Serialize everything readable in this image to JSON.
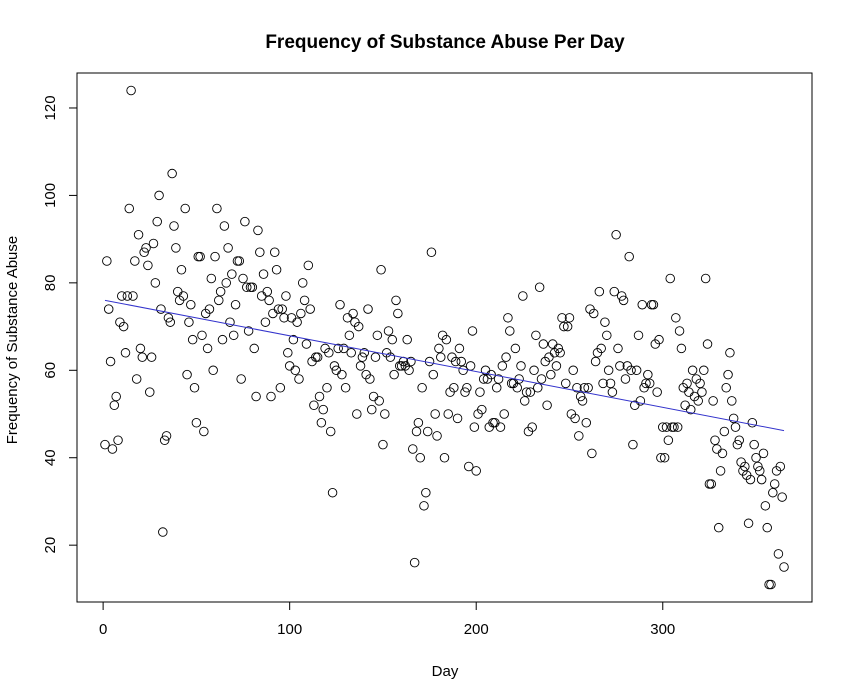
{
  "chart_data": {
    "type": "scatter",
    "title": "Frequency of Substance Abuse Per Day",
    "xlabel": "Day",
    "ylabel": "Frequency of Substance Abuse",
    "xlim": [
      -14,
      380
    ],
    "ylim": [
      7,
      128
    ],
    "xticks": [
      0,
      100,
      200,
      300
    ],
    "yticks": [
      20,
      40,
      60,
      80,
      100,
      120
    ],
    "marker": "open-circle",
    "point_color": "#000000",
    "trend_color": "#3333cc",
    "grid": false,
    "legend": "none",
    "trendline": {
      "x": [
        1,
        365
      ],
      "y": [
        76,
        46.2
      ]
    },
    "points": [
      [
        1,
        43
      ],
      [
        2,
        85
      ],
      [
        3,
        74
      ],
      [
        4,
        62
      ],
      [
        5,
        42
      ],
      [
        6,
        52
      ],
      [
        7,
        54
      ],
      [
        8,
        44
      ],
      [
        9,
        71
      ],
      [
        10,
        77
      ],
      [
        11,
        70
      ],
      [
        12,
        64
      ],
      [
        13,
        77
      ],
      [
        14,
        97
      ],
      [
        15,
        124
      ],
      [
        16,
        77
      ],
      [
        17,
        85
      ],
      [
        18,
        58
      ],
      [
        19,
        91
      ],
      [
        20,
        65
      ],
      [
        21,
        63
      ],
      [
        22,
        87
      ],
      [
        23,
        88
      ],
      [
        24,
        84
      ],
      [
        25,
        55
      ],
      [
        26,
        63
      ],
      [
        27,
        89
      ],
      [
        28,
        80
      ],
      [
        29,
        94
      ],
      [
        30,
        100
      ],
      [
        31,
        74
      ],
      [
        32,
        23
      ],
      [
        33,
        44
      ],
      [
        34,
        45
      ],
      [
        35,
        72
      ],
      [
        36,
        71
      ],
      [
        37,
        105
      ],
      [
        38,
        93
      ],
      [
        39,
        88
      ],
      [
        40,
        78
      ],
      [
        41,
        76
      ],
      [
        42,
        83
      ],
      [
        43,
        77
      ],
      [
        44,
        97
      ],
      [
        45,
        59
      ],
      [
        46,
        71
      ],
      [
        47,
        75
      ],
      [
        48,
        67
      ],
      [
        49,
        56
      ],
      [
        50,
        48
      ],
      [
        51,
        86
      ],
      [
        52,
        86
      ],
      [
        53,
        68
      ],
      [
        54,
        46
      ],
      [
        55,
        73
      ],
      [
        56,
        65
      ],
      [
        57,
        74
      ],
      [
        58,
        81
      ],
      [
        59,
        60
      ],
      [
        60,
        86
      ],
      [
        61,
        97
      ],
      [
        62,
        76
      ],
      [
        63,
        78
      ],
      [
        64,
        67
      ],
      [
        65,
        93
      ],
      [
        66,
        80
      ],
      [
        67,
        88
      ],
      [
        68,
        71
      ],
      [
        69,
        82
      ],
      [
        70,
        68
      ],
      [
        71,
        75
      ],
      [
        72,
        85
      ],
      [
        73,
        85
      ],
      [
        74,
        58
      ],
      [
        75,
        81
      ],
      [
        76,
        94
      ],
      [
        77,
        79
      ],
      [
        78,
        69
      ],
      [
        79,
        79
      ],
      [
        80,
        79
      ],
      [
        81,
        65
      ],
      [
        82,
        54
      ],
      [
        83,
        92
      ],
      [
        84,
        87
      ],
      [
        85,
        77
      ],
      [
        86,
        82
      ],
      [
        87,
        71
      ],
      [
        88,
        78
      ],
      [
        89,
        76
      ],
      [
        90,
        54
      ],
      [
        91,
        73
      ],
      [
        92,
        87
      ],
      [
        93,
        83
      ],
      [
        94,
        74
      ],
      [
        95,
        56
      ],
      [
        96,
        74
      ],
      [
        97,
        72
      ],
      [
        98,
        77
      ],
      [
        99,
        64
      ],
      [
        100,
        61
      ],
      [
        101,
        72
      ],
      [
        102,
        67
      ],
      [
        103,
        60
      ],
      [
        104,
        71
      ],
      [
        105,
        58
      ],
      [
        106,
        73
      ],
      [
        107,
        80
      ],
      [
        108,
        76
      ],
      [
        109,
        66
      ],
      [
        110,
        84
      ],
      [
        111,
        74
      ],
      [
        112,
        62
      ],
      [
        113,
        52
      ],
      [
        114,
        63
      ],
      [
        115,
        63
      ],
      [
        116,
        54
      ],
      [
        117,
        48
      ],
      [
        118,
        51
      ],
      [
        119,
        65
      ],
      [
        120,
        56
      ],
      [
        121,
        64
      ],
      [
        122,
        46
      ],
      [
        123,
        32
      ],
      [
        124,
        61
      ],
      [
        125,
        60
      ],
      [
        126,
        65
      ],
      [
        127,
        75
      ],
      [
        128,
        59
      ],
      [
        129,
        65
      ],
      [
        130,
        56
      ],
      [
        131,
        72
      ],
      [
        132,
        68
      ],
      [
        133,
        64
      ],
      [
        134,
        73
      ],
      [
        135,
        71
      ],
      [
        136,
        50
      ],
      [
        137,
        70
      ],
      [
        138,
        61
      ],
      [
        139,
        63
      ],
      [
        140,
        64
      ],
      [
        141,
        59
      ],
      [
        142,
        74
      ],
      [
        143,
        58
      ],
      [
        144,
        51
      ],
      [
        145,
        54
      ],
      [
        146,
        63
      ],
      [
        147,
        68
      ],
      [
        148,
        53
      ],
      [
        149,
        83
      ],
      [
        150,
        43
      ],
      [
        151,
        50
      ],
      [
        152,
        64
      ],
      [
        153,
        69
      ],
      [
        154,
        63
      ],
      [
        155,
        67
      ],
      [
        156,
        59
      ],
      [
        157,
        76
      ],
      [
        158,
        73
      ],
      [
        159,
        61
      ],
      [
        160,
        61
      ],
      [
        161,
        62
      ],
      [
        162,
        61
      ],
      [
        163,
        67
      ],
      [
        164,
        60
      ],
      [
        165,
        62
      ],
      [
        166,
        42
      ],
      [
        167,
        16
      ],
      [
        168,
        46
      ],
      [
        169,
        48
      ],
      [
        170,
        40
      ],
      [
        171,
        56
      ],
      [
        172,
        29
      ],
      [
        173,
        32
      ],
      [
        174,
        46
      ],
      [
        175,
        62
      ],
      [
        176,
        87
      ],
      [
        177,
        59
      ],
      [
        178,
        50
      ],
      [
        179,
        45
      ],
      [
        180,
        65
      ],
      [
        181,
        63
      ],
      [
        182,
        68
      ],
      [
        183,
        40
      ],
      [
        184,
        67
      ],
      [
        185,
        50
      ],
      [
        186,
        55
      ],
      [
        187,
        63
      ],
      [
        188,
        56
      ],
      [
        189,
        62
      ],
      [
        190,
        49
      ],
      [
        191,
        65
      ],
      [
        192,
        62
      ],
      [
        193,
        60
      ],
      [
        194,
        55
      ],
      [
        195,
        56
      ],
      [
        196,
        38
      ],
      [
        197,
        61
      ],
      [
        198,
        69
      ],
      [
        199,
        47
      ],
      [
        200,
        37
      ],
      [
        201,
        50
      ],
      [
        202,
        55
      ],
      [
        203,
        51
      ],
      [
        204,
        58
      ],
      [
        205,
        60
      ],
      [
        206,
        58
      ],
      [
        207,
        47
      ],
      [
        208,
        59
      ],
      [
        209,
        48
      ],
      [
        210,
        48
      ],
      [
        211,
        56
      ],
      [
        212,
        58
      ],
      [
        213,
        47
      ],
      [
        214,
        61
      ],
      [
        215,
        50
      ],
      [
        216,
        63
      ],
      [
        217,
        72
      ],
      [
        218,
        69
      ],
      [
        219,
        57
      ],
      [
        220,
        57
      ],
      [
        221,
        65
      ],
      [
        222,
        56
      ],
      [
        223,
        58
      ],
      [
        224,
        61
      ],
      [
        225,
        77
      ],
      [
        226,
        53
      ],
      [
        227,
        55
      ],
      [
        228,
        46
      ],
      [
        229,
        55
      ],
      [
        230,
        47
      ],
      [
        231,
        60
      ],
      [
        232,
        68
      ],
      [
        233,
        56
      ],
      [
        234,
        79
      ],
      [
        235,
        58
      ],
      [
        236,
        66
      ],
      [
        237,
        62
      ],
      [
        238,
        52
      ],
      [
        239,
        63
      ],
      [
        240,
        59
      ],
      [
        241,
        66
      ],
      [
        242,
        64
      ],
      [
        243,
        61
      ],
      [
        244,
        65
      ],
      [
        245,
        64
      ],
      [
        246,
        72
      ],
      [
        247,
        70
      ],
      [
        248,
        57
      ],
      [
        249,
        70
      ],
      [
        250,
        72
      ],
      [
        251,
        50
      ],
      [
        252,
        60
      ],
      [
        253,
        49
      ],
      [
        254,
        56
      ],
      [
        255,
        45
      ],
      [
        256,
        54
      ],
      [
        257,
        53
      ],
      [
        258,
        56
      ],
      [
        259,
        48
      ],
      [
        260,
        56
      ],
      [
        261,
        74
      ],
      [
        262,
        41
      ],
      [
        263,
        73
      ],
      [
        264,
        62
      ],
      [
        265,
        64
      ],
      [
        266,
        78
      ],
      [
        267,
        65
      ],
      [
        268,
        57
      ],
      [
        269,
        71
      ],
      [
        270,
        68
      ],
      [
        271,
        60
      ],
      [
        272,
        57
      ],
      [
        273,
        55
      ],
      [
        274,
        78
      ],
      [
        275,
        91
      ],
      [
        276,
        65
      ],
      [
        277,
        61
      ],
      [
        278,
        77
      ],
      [
        279,
        76
      ],
      [
        280,
        58
      ],
      [
        281,
        61
      ],
      [
        282,
        86
      ],
      [
        283,
        60
      ],
      [
        284,
        43
      ],
      [
        285,
        52
      ],
      [
        286,
        60
      ],
      [
        287,
        68
      ],
      [
        288,
        53
      ],
      [
        289,
        75
      ],
      [
        290,
        56
      ],
      [
        291,
        57
      ],
      [
        292,
        59
      ],
      [
        293,
        57
      ],
      [
        294,
        75
      ],
      [
        295,
        75
      ],
      [
        296,
        66
      ],
      [
        297,
        55
      ],
      [
        298,
        67
      ],
      [
        299,
        40
      ],
      [
        300,
        47
      ],
      [
        301,
        40
      ],
      [
        302,
        47
      ],
      [
        303,
        44
      ],
      [
        304,
        81
      ],
      [
        305,
        47
      ],
      [
        306,
        47
      ],
      [
        307,
        72
      ],
      [
        308,
        47
      ],
      [
        309,
        69
      ],
      [
        310,
        65
      ],
      [
        311,
        56
      ],
      [
        312,
        52
      ],
      [
        313,
        57
      ],
      [
        314,
        55
      ],
      [
        315,
        51
      ],
      [
        316,
        60
      ],
      [
        317,
        54
      ],
      [
        318,
        58
      ],
      [
        319,
        53
      ],
      [
        320,
        57
      ],
      [
        321,
        55
      ],
      [
        322,
        60
      ],
      [
        323,
        81
      ],
      [
        324,
        66
      ],
      [
        325,
        34
      ],
      [
        326,
        34
      ],
      [
        327,
        53
      ],
      [
        328,
        44
      ],
      [
        329,
        42
      ],
      [
        330,
        24
      ],
      [
        331,
        37
      ],
      [
        332,
        41
      ],
      [
        333,
        46
      ],
      [
        334,
        56
      ],
      [
        335,
        59
      ],
      [
        336,
        64
      ],
      [
        337,
        53
      ],
      [
        338,
        49
      ],
      [
        339,
        47
      ],
      [
        340,
        43
      ],
      [
        341,
        44
      ],
      [
        342,
        39
      ],
      [
        343,
        37
      ],
      [
        344,
        38
      ],
      [
        345,
        36
      ],
      [
        346,
        25
      ],
      [
        347,
        35
      ],
      [
        348,
        48
      ],
      [
        349,
        43
      ],
      [
        350,
        40
      ],
      [
        351,
        38
      ],
      [
        352,
        37
      ],
      [
        353,
        35
      ],
      [
        354,
        41
      ],
      [
        355,
        29
      ],
      [
        356,
        24
      ],
      [
        357,
        11
      ],
      [
        358,
        11
      ],
      [
        359,
        32
      ],
      [
        360,
        34
      ],
      [
        361,
        37
      ],
      [
        362,
        18
      ],
      [
        363,
        38
      ],
      [
        364,
        31
      ],
      [
        365,
        15
      ]
    ]
  }
}
